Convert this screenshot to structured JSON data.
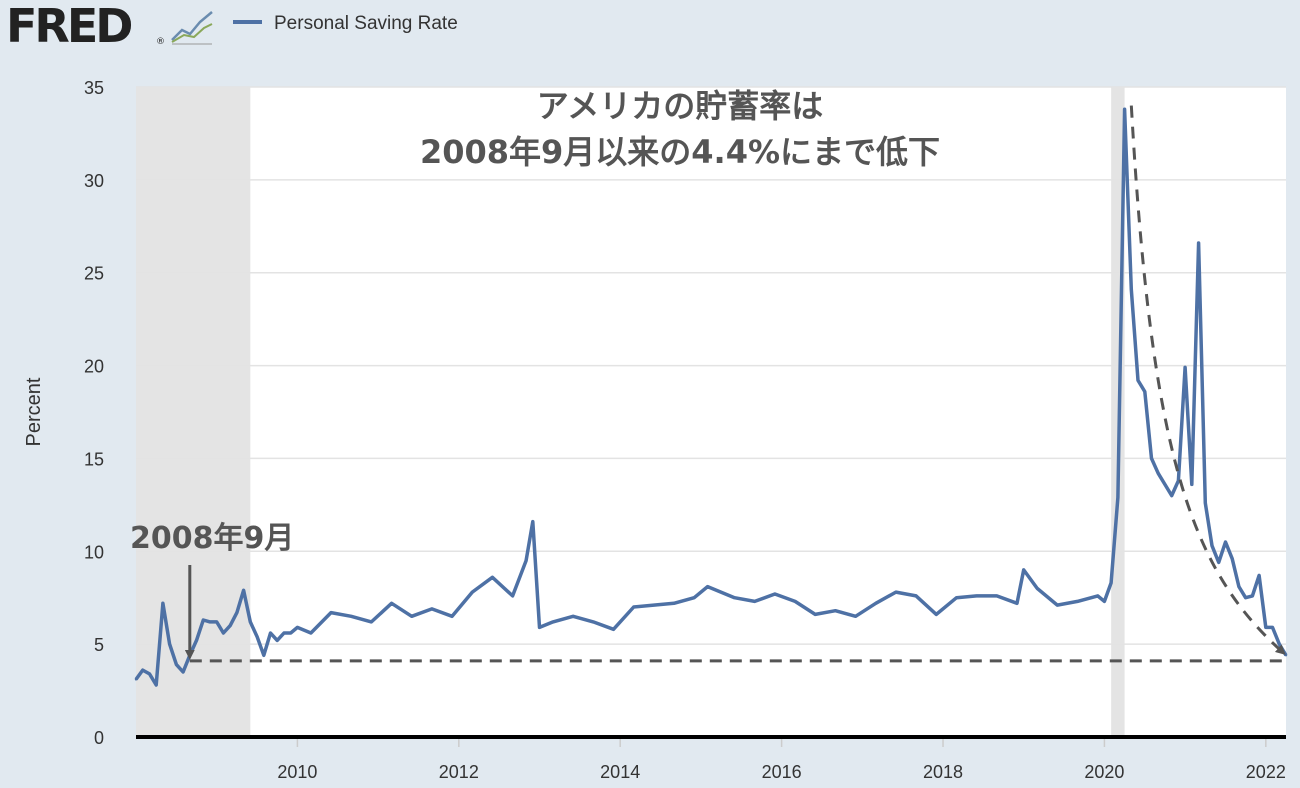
{
  "brand": {
    "logo_text": "FRED",
    "registered_mark": "®"
  },
  "chart_data": {
    "type": "line",
    "ylabel": "Percent",
    "ylim": [
      0,
      35
    ],
    "yticks": [
      0,
      5,
      10,
      15,
      20,
      25,
      30,
      35
    ],
    "xlim": [
      "2008-01",
      "2022-04"
    ],
    "xticks": [
      "2010",
      "2012",
      "2014",
      "2016",
      "2018",
      "2020",
      "2022"
    ],
    "grid": true,
    "legend": {
      "position": "top-left",
      "entries": [
        "Personal Saving Rate"
      ]
    },
    "series": [
      {
        "name": "Personal Saving Rate",
        "color": "#4e71a5",
        "x": [
          "2008-01",
          "2008-02",
          "2008-03",
          "2008-04",
          "2008-05",
          "2008-06",
          "2008-07",
          "2008-08",
          "2008-09",
          "2008-10",
          "2008-11",
          "2008-12",
          "2009-01",
          "2009-02",
          "2009-03",
          "2009-04",
          "2009-05",
          "2009-06",
          "2009-07",
          "2009-08",
          "2009-09",
          "2009-10",
          "2009-11",
          "2009-12",
          "2010-01",
          "2010-03",
          "2010-06",
          "2010-09",
          "2010-12",
          "2011-03",
          "2011-06",
          "2011-09",
          "2011-12",
          "2012-03",
          "2012-06",
          "2012-09",
          "2012-11",
          "2012-12",
          "2013-01",
          "2013-03",
          "2013-06",
          "2013-09",
          "2013-12",
          "2014-03",
          "2014-06",
          "2014-09",
          "2014-12",
          "2015-02",
          "2015-06",
          "2015-09",
          "2015-12",
          "2016-03",
          "2016-06",
          "2016-09",
          "2016-12",
          "2017-03",
          "2017-06",
          "2017-09",
          "2017-12",
          "2018-03",
          "2018-06",
          "2018-09",
          "2018-12",
          "2019-01",
          "2019-03",
          "2019-06",
          "2019-09",
          "2019-12",
          "2020-01",
          "2020-02",
          "2020-03",
          "2020-04",
          "2020-05",
          "2020-06",
          "2020-07",
          "2020-08",
          "2020-09",
          "2020-10",
          "2020-11",
          "2020-12",
          "2021-01",
          "2021-02",
          "2021-03",
          "2021-04",
          "2021-05",
          "2021-06",
          "2021-07",
          "2021-08",
          "2021-09",
          "2021-10",
          "2021-11",
          "2021-12",
          "2022-01",
          "2022-02",
          "2022-03",
          "2022-04"
        ],
        "values": [
          3.1,
          3.6,
          3.4,
          2.8,
          7.2,
          5.0,
          3.9,
          3.5,
          4.4,
          5.2,
          6.3,
          6.2,
          6.2,
          5.6,
          6.0,
          6.7,
          7.9,
          6.2,
          5.4,
          4.4,
          5.6,
          5.2,
          5.6,
          5.6,
          5.9,
          5.6,
          6.7,
          6.5,
          6.2,
          7.2,
          6.5,
          6.9,
          6.5,
          7.8,
          8.6,
          7.6,
          9.5,
          11.6,
          5.9,
          6.2,
          6.5,
          6.2,
          5.8,
          7.0,
          7.1,
          7.2,
          7.5,
          8.1,
          7.5,
          7.3,
          7.7,
          7.3,
          6.6,
          6.8,
          6.5,
          7.2,
          7.8,
          7.6,
          6.6,
          7.5,
          7.6,
          7.6,
          7.2,
          9.0,
          8.0,
          7.1,
          7.3,
          7.6,
          7.3,
          8.3,
          12.9,
          33.8,
          24.1,
          19.2,
          18.6,
          15.0,
          14.2,
          13.6,
          13.0,
          13.8,
          19.9,
          13.6,
          26.6,
          12.6,
          10.3,
          9.4,
          10.5,
          9.6,
          8.1,
          7.5,
          7.6,
          8.7,
          5.9,
          5.9,
          5.0,
          4.4
        ]
      }
    ],
    "recessions": [
      [
        "2008-01",
        "2009-06"
      ],
      [
        "2020-02",
        "2020-04"
      ]
    ],
    "annotations": {
      "title_lines": [
        "アメリカの貯蓄率は",
        "2008年9月以来の4.4%にまで低下"
      ],
      "marker_label": "2008年9月",
      "reference_level": 4.1
    }
  }
}
